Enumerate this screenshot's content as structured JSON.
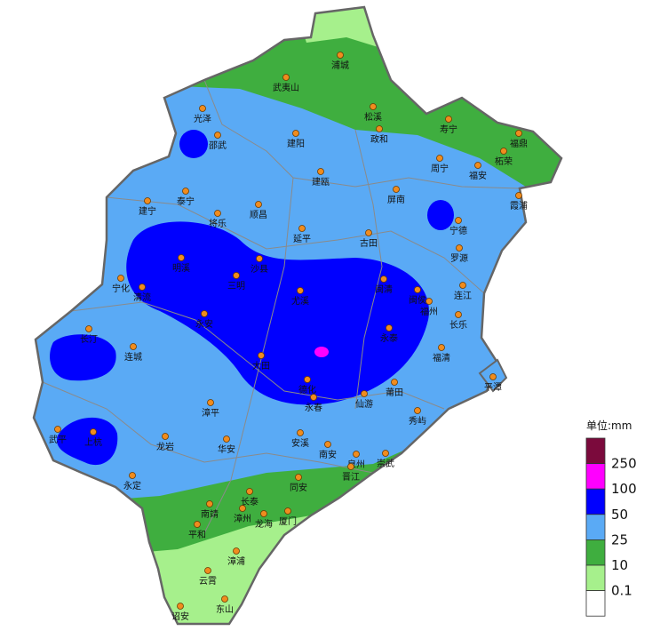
{
  "map": {
    "cities": [
      "浦城",
      "武夷山",
      "松溪",
      "政和",
      "寿宁",
      "福鼎",
      "柘荣",
      "光泽",
      "邵武",
      "建阳",
      "周宁",
      "福安",
      "建瓯",
      "泰宁",
      "建宁",
      "将乐",
      "顺昌",
      "屏南",
      "霞浦",
      "宁德",
      "延平",
      "古田",
      "罗源",
      "宁化",
      "明溪",
      "沙县",
      "三明",
      "清流",
      "闽清",
      "闽侯",
      "连江",
      "尤溪",
      "福州",
      "长乐",
      "永安",
      "长汀",
      "连城",
      "永泰",
      "大田",
      "福清",
      "平潭",
      "德化",
      "莆田",
      "仙游",
      "永春",
      "秀屿",
      "漳平",
      "武平",
      "上杭",
      "龙岩",
      "华安",
      "安溪",
      "南安",
      "泉州",
      "晋江",
      "崇武",
      "永定",
      "同安",
      "长泰",
      "南靖",
      "漳州",
      "厦门",
      "龙海",
      "平和",
      "漳浦",
      "云霄",
      "东山",
      "诏安"
    ],
    "city_color": "#f08c1e"
  },
  "legend": {
    "title": "单位:mm",
    "labels": [
      "250",
      "100",
      "50",
      "25",
      "10",
      "0.1"
    ],
    "colors": [
      "#7b0a3c",
      "#ff00ff",
      "#0000ff",
      "#5aaaf5",
      "#3fae3f",
      "#a6f08c",
      "#ffffff"
    ]
  }
}
